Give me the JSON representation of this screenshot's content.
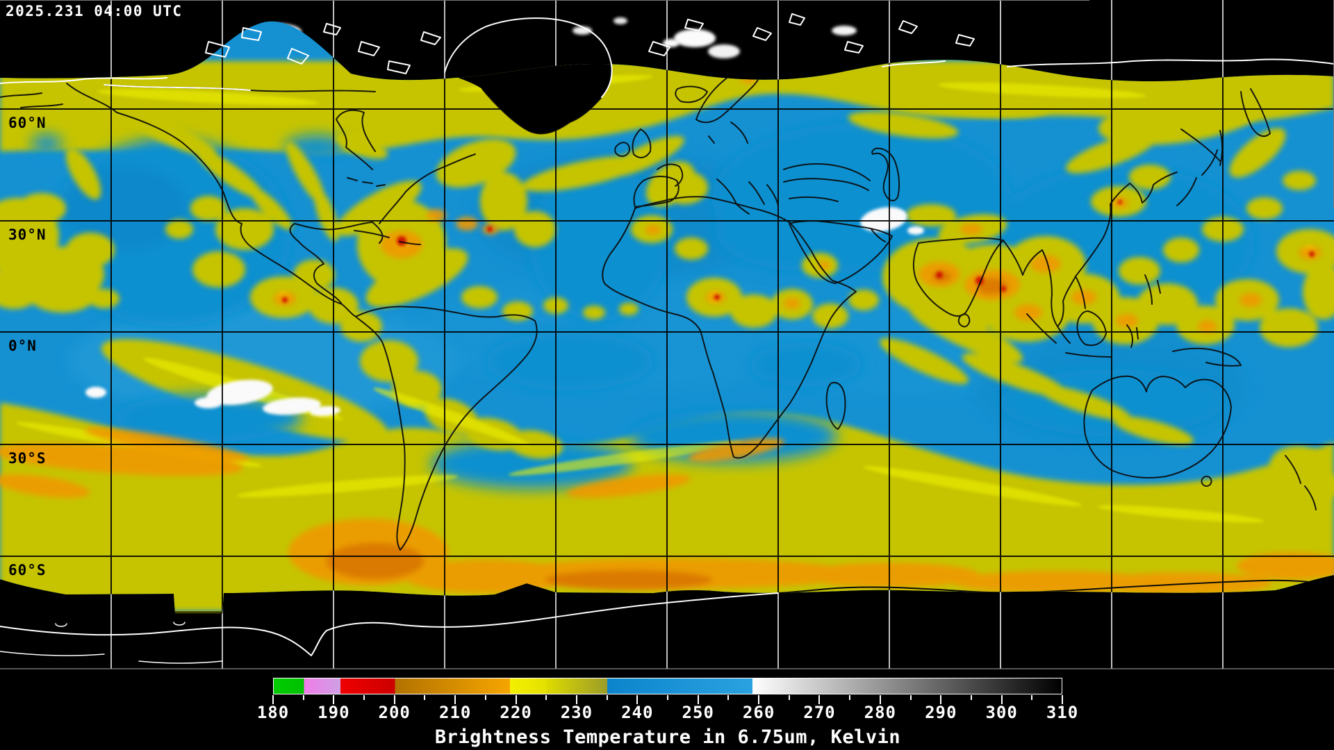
{
  "header": {
    "timestamp": "2025.231 04:00 UTC"
  },
  "map": {
    "latitude_labels": [
      {
        "text": "60°N"
      },
      {
        "text": "30°N"
      },
      {
        "text": "0°N"
      },
      {
        "text": "30°S"
      },
      {
        "text": "60°S"
      }
    ]
  },
  "colorbar": {
    "title": "Brightness Temperature in 6.75um, Kelvin",
    "range_kelvin": [
      180,
      310
    ],
    "minor_tick_step": 5,
    "major_tick_step": 10,
    "tick_labels": [
      "180",
      "190",
      "200",
      "210",
      "220",
      "230",
      "240",
      "250",
      "260",
      "270",
      "280",
      "290",
      "300",
      "310"
    ],
    "segments": [
      {
        "from": 180,
        "to": 185,
        "start": "#00cc00",
        "end": "#00c000"
      },
      {
        "from": 185,
        "to": 191,
        "start": "#f07ce8",
        "end": "#cfa0e4"
      },
      {
        "from": 191,
        "to": 200,
        "start": "#ee0000",
        "end": "#cd0000"
      },
      {
        "from": 200,
        "to": 219,
        "start": "#b27200",
        "end": "#f6a500"
      },
      {
        "from": 219,
        "to": 225,
        "start": "#f4f000",
        "end": "#e4e000"
      },
      {
        "from": 225,
        "to": 235,
        "start": "#dedb00",
        "end": "#9c9c28"
      },
      {
        "from": 235,
        "to": 259,
        "start": "#0c84cc",
        "end": "#2aa2e0"
      },
      {
        "from": 259,
        "to": 310,
        "start": "#ffffff",
        "end": "#000000"
      }
    ]
  },
  "colors": {
    "background": "#000000",
    "ocean_dry_blue": "#1591d2",
    "cloud_yellow": "#c6c400",
    "cloud_bright_yellow": "#eef000",
    "cloud_orange": "#ef9900",
    "cold_core_red": "#cf1200",
    "warm_white": "#fafafa",
    "graticule_over_data": "#000000",
    "graticule_over_space": "#ffffff",
    "coastline_over_data": "#000000",
    "coastline_over_space": "#ffffff"
  }
}
